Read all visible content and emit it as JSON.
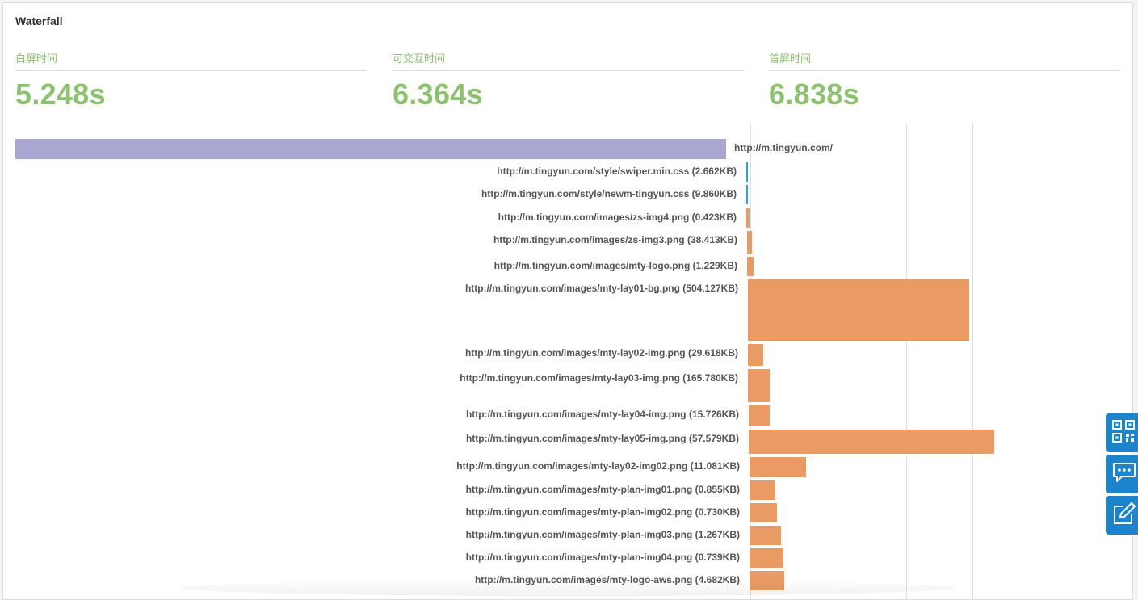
{
  "card": {
    "title": "Waterfall"
  },
  "metrics": [
    {
      "label": "白屏时间",
      "value": "5.248s"
    },
    {
      "label": "可交互时间",
      "value": "6.364s"
    },
    {
      "label": "首屏时间",
      "value": "6.838s"
    }
  ],
  "colors": {
    "metric_green": "#8cc26e",
    "document_bar": "#aaa6d2",
    "css_bar": "#2aa6d6",
    "image_bar": "#e99b63",
    "marker_line": "#cde8e0",
    "side_button": "#1a84ce"
  },
  "resources": [
    {
      "label": "http://m.tingyun.com/",
      "type": "document"
    },
    {
      "label": "http://m.tingyun.com/style/swiper.min.css (2.662KB)",
      "type": "css"
    },
    {
      "label": "http://m.tingyun.com/style/newm-tingyun.css (9.860KB)",
      "type": "css"
    },
    {
      "label": "http://m.tingyun.com/images/zs-img4.png (0.423KB)",
      "type": "image"
    },
    {
      "label": "http://m.tingyun.com/images/zs-img3.png (38.413KB)",
      "type": "image"
    },
    {
      "label": "http://m.tingyun.com/images/mty-logo.png (1.229KB)",
      "type": "image"
    },
    {
      "label": "http://m.tingyun.com/images/mty-lay01-bg.png (504.127KB)",
      "type": "image"
    },
    {
      "label": "http://m.tingyun.com/images/mty-lay02-img.png (29.618KB)",
      "type": "image"
    },
    {
      "label": "http://m.tingyun.com/images/mty-lay03-img.png (165.780KB)",
      "type": "image"
    },
    {
      "label": "http://m.tingyun.com/images/mty-lay04-img.png (15.726KB)",
      "type": "image"
    },
    {
      "label": "http://m.tingyun.com/images/mty-lay05-img.png (57.579KB)",
      "type": "image"
    },
    {
      "label": "http://m.tingyun.com/images/mty-lay02-img02.png (11.081KB)",
      "type": "image"
    },
    {
      "label": "http://m.tingyun.com/images/mty-plan-img01.png (0.855KB)",
      "type": "image"
    },
    {
      "label": "http://m.tingyun.com/images/mty-plan-img02.png (0.730KB)",
      "type": "image"
    },
    {
      "label": "http://m.tingyun.com/images/mty-plan-img03.png (1.267KB)",
      "type": "image"
    },
    {
      "label": "http://m.tingyun.com/images/mty-plan-img04.png (0.739KB)",
      "type": "image"
    },
    {
      "label": "http://m.tingyun.com/images/mty-logo-aws.png (4.682KB)",
      "type": "image"
    }
  ],
  "side_tools": [
    {
      "icon": "qrcode-icon"
    },
    {
      "icon": "chat-icon"
    },
    {
      "icon": "edit-icon"
    }
  ]
}
